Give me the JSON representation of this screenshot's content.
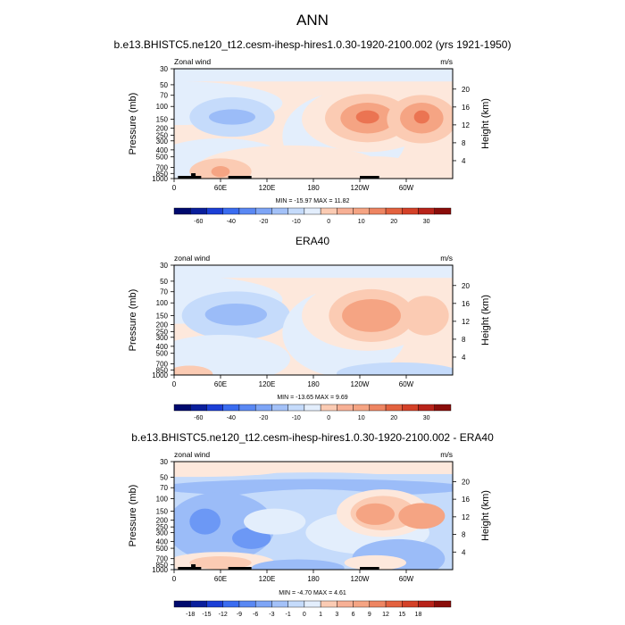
{
  "figure_title": "ANN",
  "colorbar_colors": {
    "signed_13": [
      "#0a1f8a",
      "#1c3fd6",
      "#3a6cf0",
      "#6c98f5",
      "#9bbcf8",
      "#c5dbfb",
      "#e3eefc",
      "#fde8dc",
      "#fbcbb3",
      "#f5a483",
      "#eb7452",
      "#d44128",
      "#a0150e"
    ]
  },
  "chart_data": [
    {
      "type": "heatmap",
      "id": "model",
      "title": "b.e13.BHISTC5.ne120_t12.cesm-ihesp-hires1.0.30-1920-2100.002 (yrs 1921-1950)",
      "field_label": "Zonal wind",
      "units": "m/s",
      "ylabel": "Pressure (mb)",
      "y2label": "Height (km)",
      "xlabel": "",
      "x_ticks": [
        "0",
        "60E",
        "120E",
        "180",
        "120W",
        "60W"
      ],
      "x_tick_values": [
        0,
        60,
        120,
        180,
        240,
        300
      ],
      "xlim": [
        0,
        360
      ],
      "y_ticks": [
        "30",
        "50",
        "70",
        "100",
        "150",
        "200",
        "250",
        "300",
        "400",
        "500",
        "700",
        "850",
        "1000"
      ],
      "y_tick_values": [
        30,
        50,
        70,
        100,
        150,
        200,
        250,
        300,
        400,
        500,
        700,
        850,
        1000
      ],
      "ylim": [
        30,
        1000
      ],
      "height_ticks": [
        "4",
        "8",
        "12",
        "16",
        "20"
      ],
      "height_tick_values": [
        4,
        8,
        12,
        16,
        20
      ],
      "stats": "MIN = -15.97  MAX = 11.82",
      "colorbar_labels": [
        "-60",
        "-40",
        "-20",
        "-10",
        "0",
        "10",
        "20",
        "30"
      ],
      "min": -15.97,
      "max": 11.82
    },
    {
      "type": "heatmap",
      "id": "obs",
      "title": "ERA40",
      "field_label": "zonal wind",
      "units": "m/s",
      "ylabel": "Pressure (mb)",
      "y2label": "Height (km)",
      "xlabel": "",
      "x_ticks": [
        "0",
        "60E",
        "120E",
        "180",
        "120W",
        "60W"
      ],
      "x_tick_values": [
        0,
        60,
        120,
        180,
        240,
        300
      ],
      "xlim": [
        0,
        360
      ],
      "y_ticks": [
        "30",
        "50",
        "70",
        "100",
        "150",
        "200",
        "250",
        "300",
        "400",
        "500",
        "700",
        "850",
        "1000"
      ],
      "y_tick_values": [
        30,
        50,
        70,
        100,
        150,
        200,
        250,
        300,
        400,
        500,
        700,
        850,
        1000
      ],
      "ylim": [
        30,
        1000
      ],
      "height_ticks": [
        "4",
        "8",
        "12",
        "16",
        "20"
      ],
      "height_tick_values": [
        4,
        8,
        12,
        16,
        20
      ],
      "stats": "MIN = -13.65  MAX =  9.69",
      "colorbar_labels": [
        "-60",
        "-40",
        "-20",
        "-10",
        "0",
        "10",
        "20",
        "30"
      ],
      "min": -13.65,
      "max": 9.69
    },
    {
      "type": "heatmap",
      "id": "diff",
      "title": "b.e13.BHISTC5.ne120_t12.cesm-ihesp-hires1.0.30-1920-2100.002 - ERA40",
      "field_label": "zonal wind",
      "units": "m/s",
      "ylabel": "Pressure (mb)",
      "y2label": "Height (km)",
      "xlabel": "",
      "x_ticks": [
        "0",
        "60E",
        "120E",
        "180",
        "120W",
        "60W"
      ],
      "x_tick_values": [
        0,
        60,
        120,
        180,
        240,
        300
      ],
      "xlim": [
        0,
        360
      ],
      "y_ticks": [
        "30",
        "50",
        "70",
        "100",
        "150",
        "200",
        "250",
        "300",
        "400",
        "500",
        "700",
        "850",
        "1000"
      ],
      "y_tick_values": [
        30,
        50,
        70,
        100,
        150,
        200,
        250,
        300,
        400,
        500,
        700,
        850,
        1000
      ],
      "ylim": [
        30,
        1000
      ],
      "height_ticks": [
        "4",
        "8",
        "12",
        "16",
        "20"
      ],
      "height_tick_values": [
        4,
        8,
        12,
        16,
        20
      ],
      "stats": "MIN = -4.70  MAX =  4.61",
      "colorbar_labels": [
        "-18",
        "-15",
        "-12",
        "-9",
        "-6",
        "-3",
        "-1",
        "0",
        "1",
        "3",
        "6",
        "9",
        "12",
        "15",
        "18"
      ],
      "min": -4.7,
      "max": 4.61
    }
  ]
}
